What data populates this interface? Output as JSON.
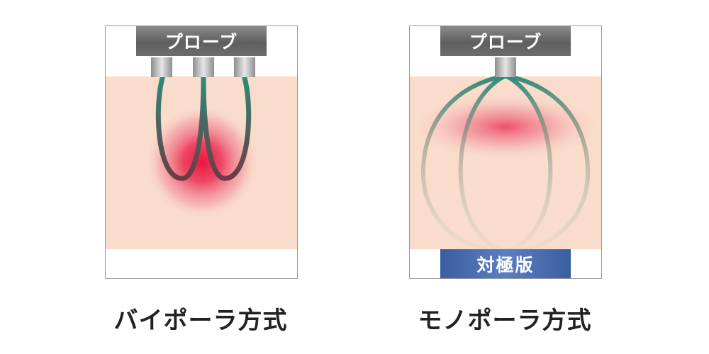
{
  "bipolar": {
    "probe_label": "プローブ",
    "caption": "バイポーラ方式"
  },
  "monopolar": {
    "probe_label": "プローブ",
    "plate_label": "対極版",
    "caption": "モノポーラ方式"
  },
  "colors": {
    "skin": "#f9dccb",
    "heat": "#e8163f",
    "electrode": "#2e8a78",
    "probe": "#6a6a6a",
    "plate": "#4a6bb0"
  }
}
